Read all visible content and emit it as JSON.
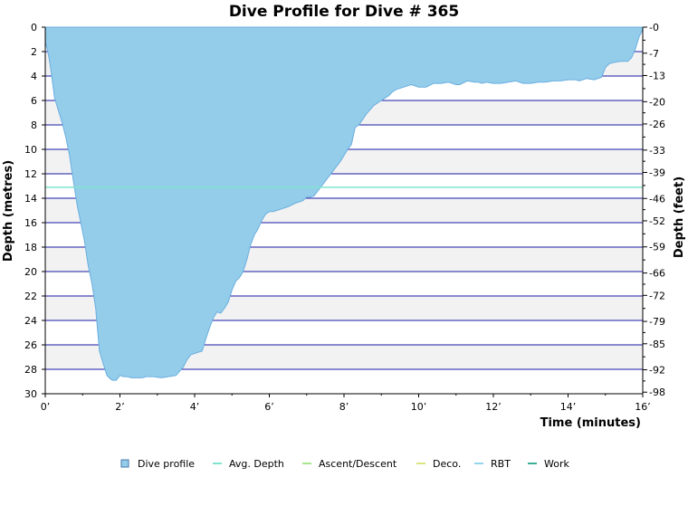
{
  "chart_data": {
    "type": "area",
    "title": "Dive Profile for Dive # 365",
    "xlabel": "Time (minutes)",
    "ylabel": "Depth (metres)",
    "y2label": "Depth (feet)",
    "xlim": [
      0,
      16
    ],
    "ylim": [
      0,
      30
    ],
    "y_inverted": true,
    "x_ticks": [
      0,
      2,
      4,
      6,
      8,
      10,
      12,
      14,
      16
    ],
    "x_tick_labels": [
      "0’",
      "2’",
      "4’",
      "6’",
      "8’",
      "10’",
      "12’",
      "14’",
      "16’"
    ],
    "y_ticks": [
      0,
      2,
      4,
      6,
      8,
      10,
      12,
      14,
      16,
      18,
      20,
      22,
      24,
      26,
      28,
      30
    ],
    "y_tick_labels": [
      "0",
      "2",
      "4",
      "6",
      "8",
      "10",
      "12",
      "14",
      "16",
      "18",
      "20",
      "22",
      "24",
      "26",
      "28",
      "30"
    ],
    "y2_ticks_metres": [
      0,
      2.13,
      3.96,
      6.1,
      7.92,
      10.06,
      11.89,
      14.02,
      15.85,
      17.98,
      20.12,
      21.95,
      24.08,
      25.91,
      28.04,
      29.87
    ],
    "y2_tick_labels": [
      "0",
      "7",
      "13",
      "20",
      "26",
      "33",
      "39",
      "46",
      "52",
      "59",
      "66",
      "72",
      "79",
      "85",
      "92",
      "98"
    ],
    "grid": true,
    "legend_position": "bottom",
    "series": [
      {
        "name": "Dive profile",
        "color": "#94cdea",
        "x": [
          0,
          0.05,
          0.1,
          0.15,
          0.25,
          0.35,
          0.45,
          0.55,
          0.65,
          0.75,
          0.85,
          0.95,
          1.05,
          1.15,
          1.25,
          1.35,
          1.45,
          1.55,
          1.65,
          1.75,
          1.8,
          1.9,
          2.0,
          2.1,
          2.2,
          2.3,
          2.4,
          2.5,
          2.6,
          2.7,
          2.9,
          3.1,
          3.3,
          3.5,
          3.7,
          3.8,
          3.9,
          4.1,
          4.2,
          4.3,
          4.4,
          4.5,
          4.6,
          4.7,
          4.8,
          4.9,
          5.0,
          5.1,
          5.2,
          5.3,
          5.4,
          5.5,
          5.6,
          5.7,
          5.8,
          5.9,
          6.0,
          6.1,
          6.2,
          6.3,
          6.4,
          6.5,
          6.7,
          6.9,
          7.0,
          7.1,
          7.2,
          7.4,
          7.5,
          7.7,
          7.9,
          8.0,
          8.1,
          8.2,
          8.3,
          8.4,
          8.6,
          8.8,
          9.0,
          9.1,
          9.2,
          9.3,
          9.4,
          9.6,
          9.8,
          10.0,
          10.2,
          10.4,
          10.6,
          10.8,
          11.0,
          11.1,
          11.3,
          11.5,
          11.6,
          11.7,
          11.8,
          12.0,
          12.2,
          12.4,
          12.6,
          12.8,
          13.0,
          13.2,
          13.4,
          13.6,
          13.8,
          14.0,
          14.2,
          14.3,
          14.5,
          14.7,
          14.9,
          15.0,
          15.1,
          15.2,
          15.4,
          15.6,
          15.7,
          15.8,
          15.9,
          16.0
        ],
        "y": [
          1.2,
          1.8,
          2.5,
          3.5,
          5.8,
          6.8,
          7.8,
          9.0,
          10.5,
          12.5,
          14.5,
          16.0,
          17.5,
          19.5,
          21.0,
          23.0,
          26.5,
          27.5,
          28.5,
          28.8,
          28.9,
          28.9,
          28.5,
          28.6,
          28.6,
          28.7,
          28.7,
          28.7,
          28.7,
          28.6,
          28.6,
          28.7,
          28.6,
          28.5,
          27.8,
          27.2,
          26.8,
          26.6,
          26.5,
          25.5,
          24.6,
          23.8,
          23.3,
          23.4,
          23.0,
          22.5,
          21.5,
          20.8,
          20.5,
          20.0,
          19.0,
          17.8,
          17.0,
          16.5,
          15.8,
          15.3,
          15.1,
          15.1,
          15.0,
          14.9,
          14.8,
          14.7,
          14.4,
          14.2,
          13.9,
          13.9,
          13.8,
          13.0,
          12.6,
          11.8,
          11.0,
          10.5,
          10.0,
          9.6,
          8.2,
          8.0,
          7.1,
          6.4,
          6.0,
          5.8,
          5.6,
          5.3,
          5.1,
          4.9,
          4.7,
          4.9,
          4.9,
          4.6,
          4.6,
          4.5,
          4.7,
          4.7,
          4.4,
          4.5,
          4.5,
          4.6,
          4.5,
          4.6,
          4.6,
          4.5,
          4.4,
          4.6,
          4.6,
          4.5,
          4.5,
          4.4,
          4.4,
          4.3,
          4.3,
          4.4,
          4.2,
          4.3,
          4.1,
          3.3,
          3.0,
          2.9,
          2.8,
          2.8,
          2.5,
          1.8,
          0.8,
          0.2
        ]
      },
      {
        "name": "Avg. Depth",
        "color": "#7fe3d0",
        "y": 13.1
      },
      {
        "name": "Ascent/Descent",
        "color": "#a6e68c"
      },
      {
        "name": "Deco.",
        "color": "#d9e37f"
      },
      {
        "name": "RBT",
        "color": "#94d4ec"
      },
      {
        "name": "Work",
        "color": "#3cae98"
      }
    ]
  }
}
